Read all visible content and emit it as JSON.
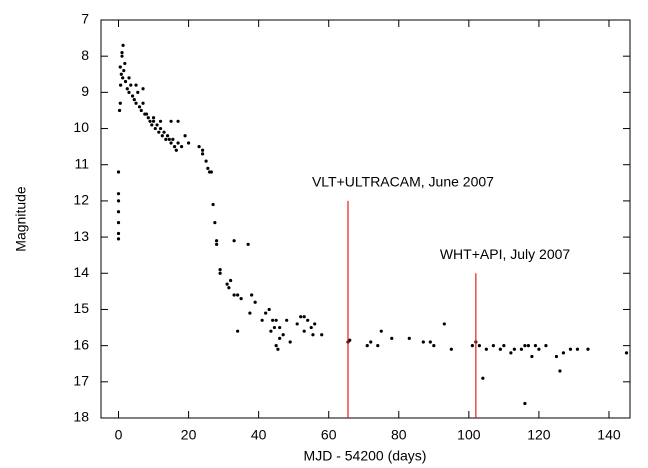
{
  "chart_data": {
    "type": "scatter",
    "x_label": "MJD - 54200 (days)",
    "y_label": "Magnitude",
    "xlim": [
      -5,
      146
    ],
    "ylim": [
      18,
      7
    ],
    "xticks": [
      0,
      20,
      40,
      60,
      80,
      100,
      120,
      140
    ],
    "yticks": [
      7,
      8,
      9,
      10,
      11,
      12,
      13,
      14,
      15,
      16,
      17,
      18
    ],
    "color": "#000000",
    "x": [
      0,
      0,
      0,
      0,
      0,
      0,
      0,
      0.5,
      0.8,
      1,
      1.2,
      1.5,
      1,
      1.3,
      0.6,
      1.8,
      2,
      0.3,
      0.5,
      2.5,
      3,
      3.5,
      4,
      4.5,
      5,
      5.5,
      6,
      6.5,
      7,
      7.5,
      8,
      3,
      5,
      7,
      8.5,
      9,
      9.5,
      10,
      10.5,
      11,
      11.5,
      12,
      12.5,
      13,
      13.5,
      14,
      14.5,
      15,
      15.5,
      16,
      16.5,
      17,
      18,
      10,
      12,
      15,
      17,
      19,
      20,
      23,
      24,
      25,
      25.5,
      26,
      26.5,
      24,
      27,
      27.5,
      28,
      28,
      29,
      29,
      31,
      31.5,
      32,
      33,
      34,
      34,
      35,
      37,
      33,
      37.5,
      38,
      39,
      41,
      42,
      43,
      44,
      44.5,
      45,
      45,
      45.5,
      46,
      43.5,
      46,
      47,
      48,
      49,
      51,
      52,
      53,
      54,
      55,
      55.5,
      56,
      58,
      53,
      65.5,
      66,
      71,
      72,
      74,
      75,
      78,
      83,
      87,
      89,
      90,
      93,
      95,
      101,
      102,
      103,
      104,
      105,
      107,
      109,
      110,
      112,
      113,
      115,
      116,
      116,
      117,
      118,
      119,
      120,
      122,
      125,
      126,
      127,
      129,
      131,
      134,
      145
    ],
    "values": [
      12.0,
      12.3,
      12.6,
      12.9,
      13.05,
      11.8,
      11.2,
      8.3,
      8.5,
      8.0,
      8.6,
      8.4,
      7.9,
      7.7,
      8.8,
      8.2,
      8.7,
      9.5,
      9.3,
      8.9,
      9.0,
      8.8,
      9.1,
      9.2,
      9.3,
      9.0,
      9.4,
      9.5,
      9.3,
      9.6,
      9.6,
      8.6,
      8.8,
      8.9,
      9.7,
      9.8,
      9.9,
      9.7,
      10.0,
      9.9,
      10.1,
      10.0,
      10.2,
      10.1,
      10.3,
      10.2,
      10.3,
      10.4,
      10.3,
      10.5,
      10.6,
      10.4,
      10.5,
      9.8,
      9.8,
      9.8,
      9.8,
      10.2,
      10.4,
      10.5,
      10.7,
      10.9,
      11.1,
      11.2,
      11.2,
      10.6,
      12.1,
      12.6,
      13.1,
      13.2,
      14.0,
      13.9,
      14.3,
      14.4,
      14.2,
      14.6,
      14.6,
      15.6,
      14.7,
      13.2,
      13.1,
      15.1,
      14.6,
      14.8,
      15.3,
      15.1,
      15.0,
      15.3,
      15.5,
      15.3,
      16.0,
      16.1,
      15.5,
      15.6,
      15.8,
      15.7,
      15.3,
      15.9,
      15.4,
      15.2,
      15.2,
      15.3,
      15.5,
      15.7,
      15.4,
      15.7,
      15.6,
      15.9,
      15.85,
      16.0,
      15.9,
      16.0,
      15.6,
      15.8,
      15.8,
      15.9,
      15.9,
      16.0,
      15.4,
      16.1,
      16.0,
      15.9,
      16.0,
      16.9,
      16.1,
      16.0,
      16.1,
      16.0,
      16.2,
      16.1,
      16.1,
      16.0,
      17.6,
      16.0,
      16.3,
      16.0,
      16.1,
      16.0,
      16.3,
      16.7,
      16.2,
      16.1,
      16.1,
      16.1,
      16.2
    ],
    "annotations": [
      {
        "text": "VLT+ULTRACAM, June 2007",
        "x": 65.5,
        "y": 12,
        "color": "#e0201f"
      },
      {
        "text": "WHT+API, July 2007",
        "x": 102,
        "y": 14,
        "color": "#e0201f"
      }
    ]
  }
}
